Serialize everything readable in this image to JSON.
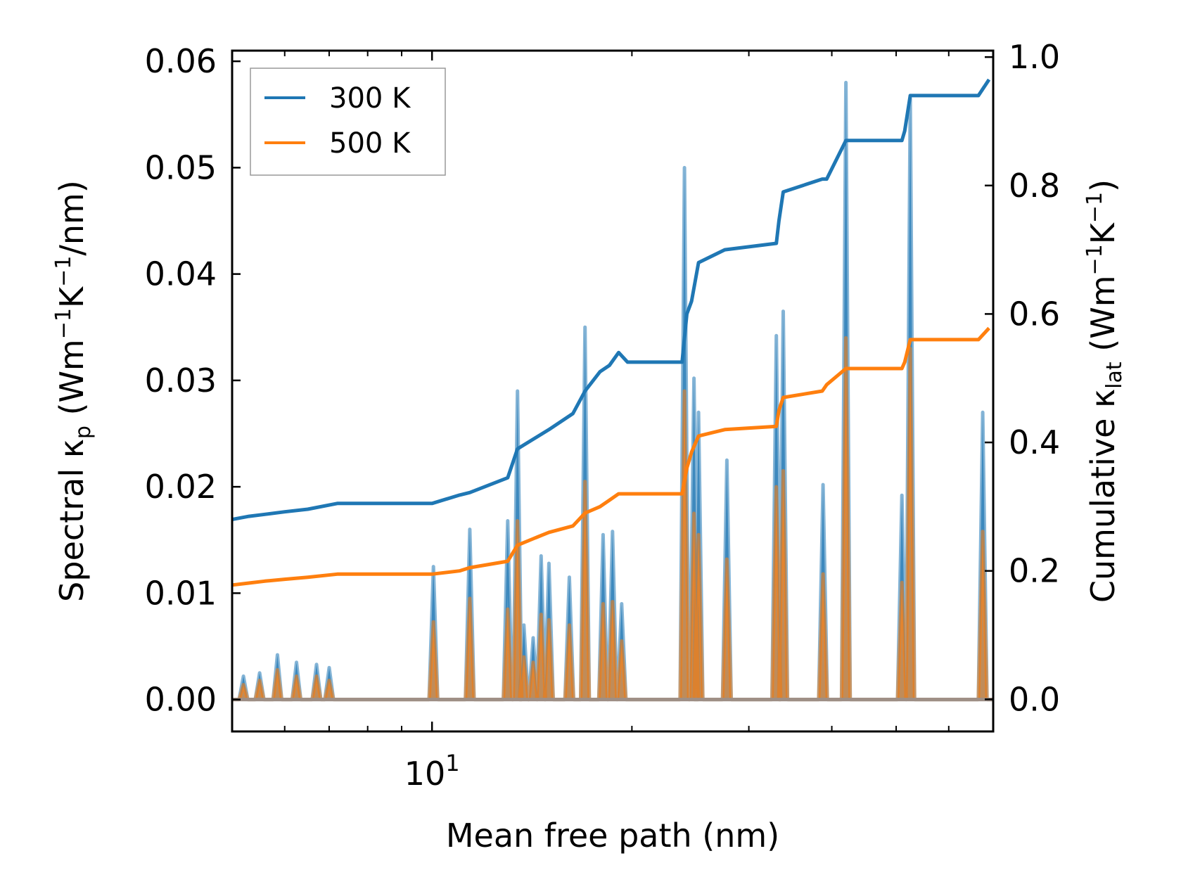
{
  "chart_data": {
    "type": "line",
    "title": "",
    "xlabel": "Mean free path (nm)",
    "xscale": "log",
    "xlim": [
      5.0,
      70.0
    ],
    "x_ticks": [
      {
        "value": 10,
        "base": "10",
        "exp": "1"
      }
    ],
    "ylabel_left": {
      "main": "Spectral κ",
      "sub": "p",
      "tail": " (Wm",
      "sup1": "−1",
      "mid": "K",
      "sup2": "−1",
      "end": "/nm)"
    },
    "ylabel_right": {
      "main": "Cumulative κ",
      "sub": "lat",
      "tail": " (Wm",
      "sup1": "−1",
      "mid": "K",
      "sup2": "−1",
      "end": ")"
    },
    "ylim_left": [
      -0.003,
      0.061
    ],
    "ylim_right": [
      -0.05,
      1.01
    ],
    "yticks_left": [
      "0.00",
      "0.01",
      "0.02",
      "0.03",
      "0.04",
      "0.05",
      "0.06"
    ],
    "yticks_right": [
      "0.0",
      "0.2",
      "0.4",
      "0.6",
      "0.8",
      "1.0"
    ],
    "legend": {
      "position": "top-left",
      "entries": [
        {
          "label": "300 K",
          "color": "#1f77b4"
        },
        {
          "label": "500 K",
          "color": "#ff7f0e"
        }
      ]
    },
    "spectral": {
      "base": 0.0,
      "x_start": 5.0,
      "x_end": 70.0,
      "peaks_300K": [
        [
          5.2,
          0.0022
        ],
        [
          5.5,
          0.0025
        ],
        [
          5.85,
          0.0042
        ],
        [
          6.25,
          0.0035
        ],
        [
          6.7,
          0.0033
        ],
        [
          7.0,
          0.003
        ],
        [
          10.05,
          0.0125
        ],
        [
          11.4,
          0.016
        ],
        [
          13.0,
          0.0168
        ],
        [
          13.45,
          0.029
        ],
        [
          13.75,
          0.007
        ],
        [
          14.2,
          0.0058
        ],
        [
          14.6,
          0.0135
        ],
        [
          15.0,
          0.0128
        ],
        [
          16.1,
          0.0115
        ],
        [
          17.0,
          0.035
        ],
        [
          18.1,
          0.0155
        ],
        [
          18.7,
          0.0158
        ],
        [
          19.3,
          0.009
        ],
        [
          24.0,
          0.05
        ],
        [
          24.8,
          0.0302
        ],
        [
          25.2,
          0.027
        ],
        [
          27.8,
          0.0225
        ],
        [
          33.0,
          0.0342
        ],
        [
          33.8,
          0.0365
        ],
        [
          38.8,
          0.0202
        ],
        [
          42.0,
          0.058
        ],
        [
          51.0,
          0.0192
        ],
        [
          52.5,
          0.0565
        ],
        [
          67.5,
          0.027
        ]
      ],
      "peaks_500K": [
        [
          5.2,
          0.0014
        ],
        [
          5.5,
          0.0018
        ],
        [
          5.85,
          0.0028
        ],
        [
          6.25,
          0.0022
        ],
        [
          6.7,
          0.0022
        ],
        [
          7.0,
          0.0018
        ],
        [
          10.05,
          0.0073
        ],
        [
          11.4,
          0.0095
        ],
        [
          13.0,
          0.0085
        ],
        [
          13.45,
          0.0168
        ],
        [
          13.75,
          0.004
        ],
        [
          14.2,
          0.0035
        ],
        [
          14.6,
          0.008
        ],
        [
          15.0,
          0.0075
        ],
        [
          16.1,
          0.007
        ],
        [
          17.0,
          0.0205
        ],
        [
          18.1,
          0.009
        ],
        [
          18.7,
          0.0092
        ],
        [
          19.3,
          0.0055
        ],
        [
          24.0,
          0.029
        ],
        [
          24.8,
          0.0175
        ],
        [
          25.2,
          0.0155
        ],
        [
          27.8,
          0.0132
        ],
        [
          33.0,
          0.02
        ],
        [
          33.8,
          0.0215
        ],
        [
          38.8,
          0.0118
        ],
        [
          42.0,
          0.034
        ],
        [
          51.0,
          0.011
        ],
        [
          52.5,
          0.033
        ],
        [
          67.5,
          0.0158
        ]
      ]
    },
    "cumulative": {
      "series": [
        {
          "name": "300 K",
          "color": "#1f77b4",
          "x": [
            5.0,
            5.3,
            5.6,
            6.0,
            6.5,
            7.2,
            10.0,
            11.0,
            11.4,
            13.0,
            13.45,
            14.2,
            15.0,
            16.3,
            17.0,
            17.9,
            18.5,
            19.1,
            19.7,
            23.8,
            24.2,
            24.6,
            25.2,
            27.6,
            33.0,
            33.3,
            33.8,
            38.7,
            39.3,
            42.0,
            51.0,
            51.5,
            52.5,
            66.5,
            69.0
          ],
          "values": [
            0.28,
            0.285,
            0.288,
            0.292,
            0.296,
            0.305,
            0.305,
            0.318,
            0.322,
            0.345,
            0.39,
            0.405,
            0.42,
            0.445,
            0.48,
            0.51,
            0.52,
            0.54,
            0.525,
            0.525,
            0.6,
            0.62,
            0.68,
            0.7,
            0.71,
            0.745,
            0.79,
            0.81,
            0.81,
            0.87,
            0.87,
            0.885,
            0.94,
            0.94,
            0.965
          ]
        },
        {
          "name": "500 K",
          "color": "#ff7f0e",
          "x": [
            5.0,
            5.3,
            5.6,
            6.0,
            6.5,
            7.2,
            10.0,
            11.0,
            11.4,
            13.0,
            13.45,
            14.2,
            15.0,
            16.3,
            17.0,
            17.9,
            18.5,
            19.1,
            19.7,
            23.8,
            24.2,
            24.6,
            25.2,
            27.6,
            33.0,
            33.3,
            33.8,
            38.7,
            39.3,
            42.0,
            51.0,
            51.5,
            52.5,
            66.5,
            69.0
          ],
          "values": [
            0.178,
            0.181,
            0.184,
            0.187,
            0.19,
            0.195,
            0.195,
            0.2,
            0.205,
            0.215,
            0.24,
            0.25,
            0.26,
            0.27,
            0.29,
            0.3,
            0.31,
            0.32,
            0.32,
            0.32,
            0.36,
            0.385,
            0.41,
            0.42,
            0.425,
            0.45,
            0.47,
            0.48,
            0.49,
            0.515,
            0.515,
            0.525,
            0.56,
            0.56,
            0.578
          ]
        }
      ]
    }
  }
}
